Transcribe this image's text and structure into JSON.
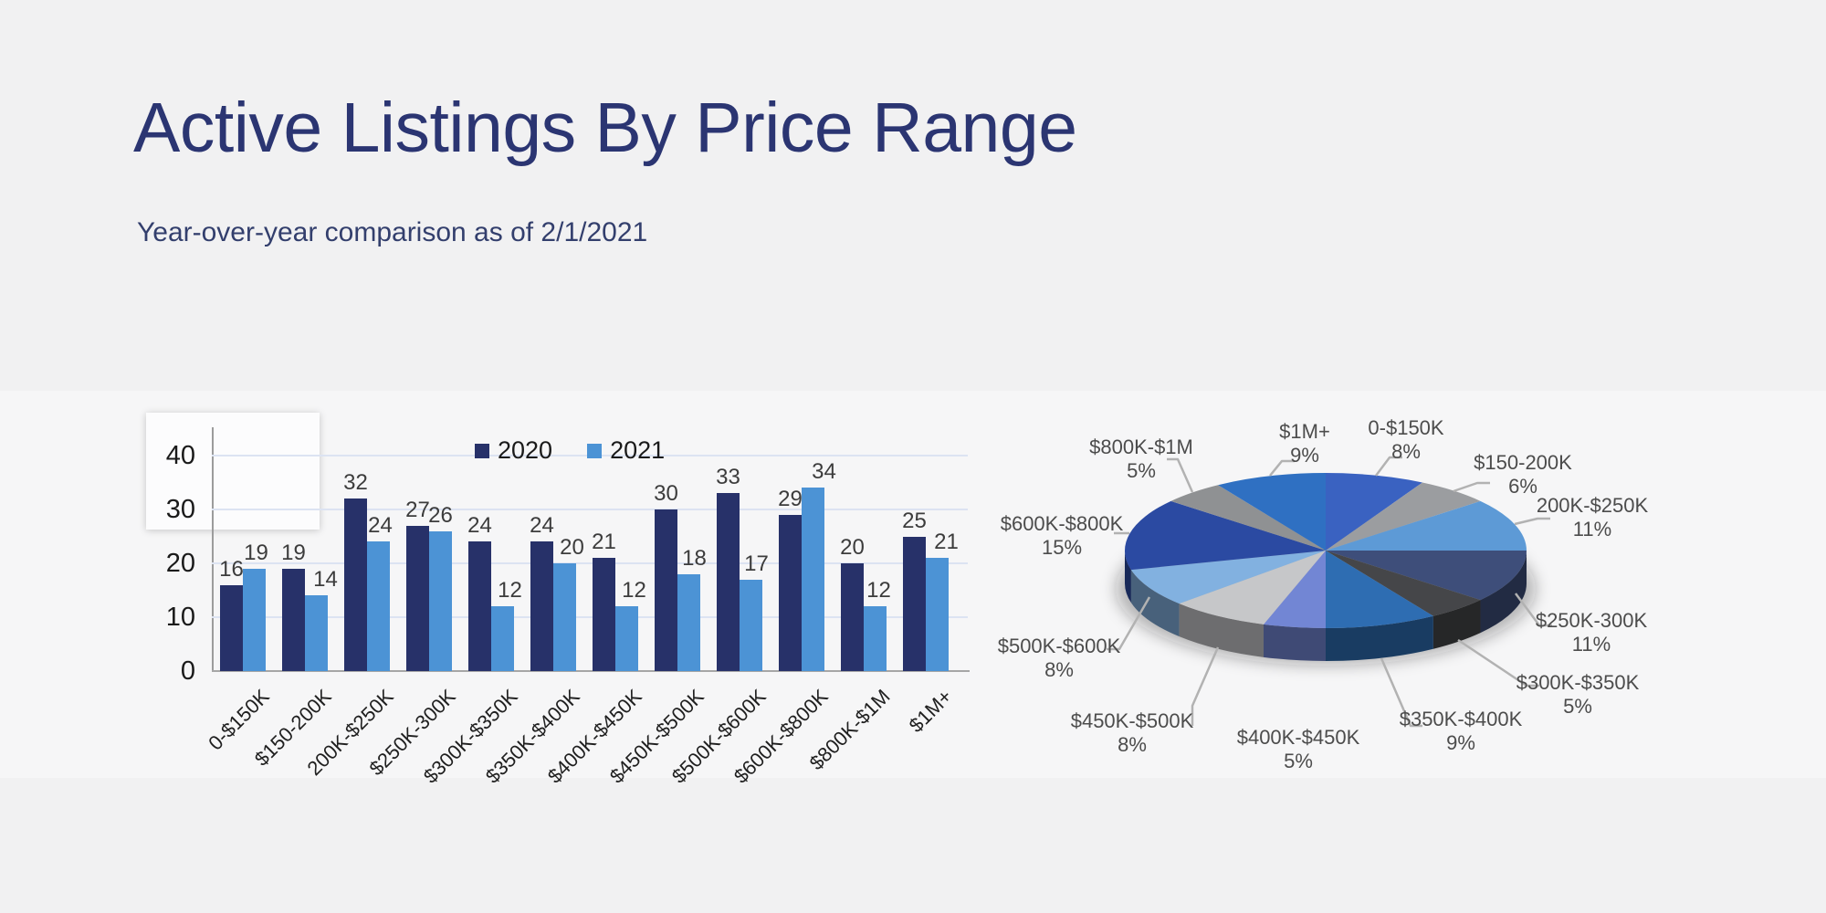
{
  "title": "Active Listings By Price Range",
  "subtitle": "Year-over-year comparison as of 2/1/2021",
  "colors": {
    "background": "#F1F1F2",
    "panel": "#F6F6F7",
    "title_navy": "#2B3572",
    "gridline": "#DCE3F2",
    "axis_gray": "#9C9C9C",
    "leader_gray": "#B2B2B2",
    "pie_label_gray": "#4C4C4C"
  },
  "chart_data": [
    {
      "type": "bar",
      "categories": [
        "0-$150K",
        "$150-200K",
        "200K-$250K",
        "$250K-300K",
        "$300K-$350K",
        "$350K-$400K",
        "$400K-$450K",
        "$450K-$500K",
        "$500K-$600K",
        "$600K-$800K",
        "$800K-$1M",
        "$1M+"
      ],
      "series": [
        {
          "name": "2020",
          "color": "#273169",
          "values": [
            16,
            19,
            32,
            27,
            24,
            24,
            21,
            30,
            33,
            29,
            20,
            25
          ]
        },
        {
          "name": "2021",
          "color": "#4C93D5",
          "values": [
            19,
            14,
            24,
            26,
            12,
            20,
            12,
            18,
            17,
            34,
            12,
            21
          ]
        }
      ],
      "ylim": [
        0,
        40
      ],
      "yticks": [
        0,
        10,
        20,
        30,
        40
      ],
      "grid": "horizontal",
      "legend_position": "top-center",
      "data_labels": true
    },
    {
      "type": "pie",
      "labels": [
        "0-$150K",
        "$150-200K",
        "200K-$250K",
        "$250K-300K",
        "$300K-$350K",
        "$350K-$400K",
        "$400K-$450K",
        "$450K-$500K",
        "$500K-$600K",
        "$600K-$800K",
        "$800K-$1M",
        "$1M+"
      ],
      "values": [
        8,
        6,
        11,
        11,
        5,
        9,
        5,
        8,
        8,
        15,
        5,
        9
      ],
      "unit": "%",
      "colors": [
        "#3A62C1",
        "#9B9DA0",
        "#5D9AD6",
        "#3E4E7A",
        "#454649",
        "#2E6DB2",
        "#7286D4",
        "#C6C7C9",
        "#82B1E0",
        "#2B4AA2",
        "#8F9193",
        "#2F70C2"
      ],
      "effect": "3d",
      "start_angle_deg": 0,
      "direction": "clockwise"
    }
  ]
}
